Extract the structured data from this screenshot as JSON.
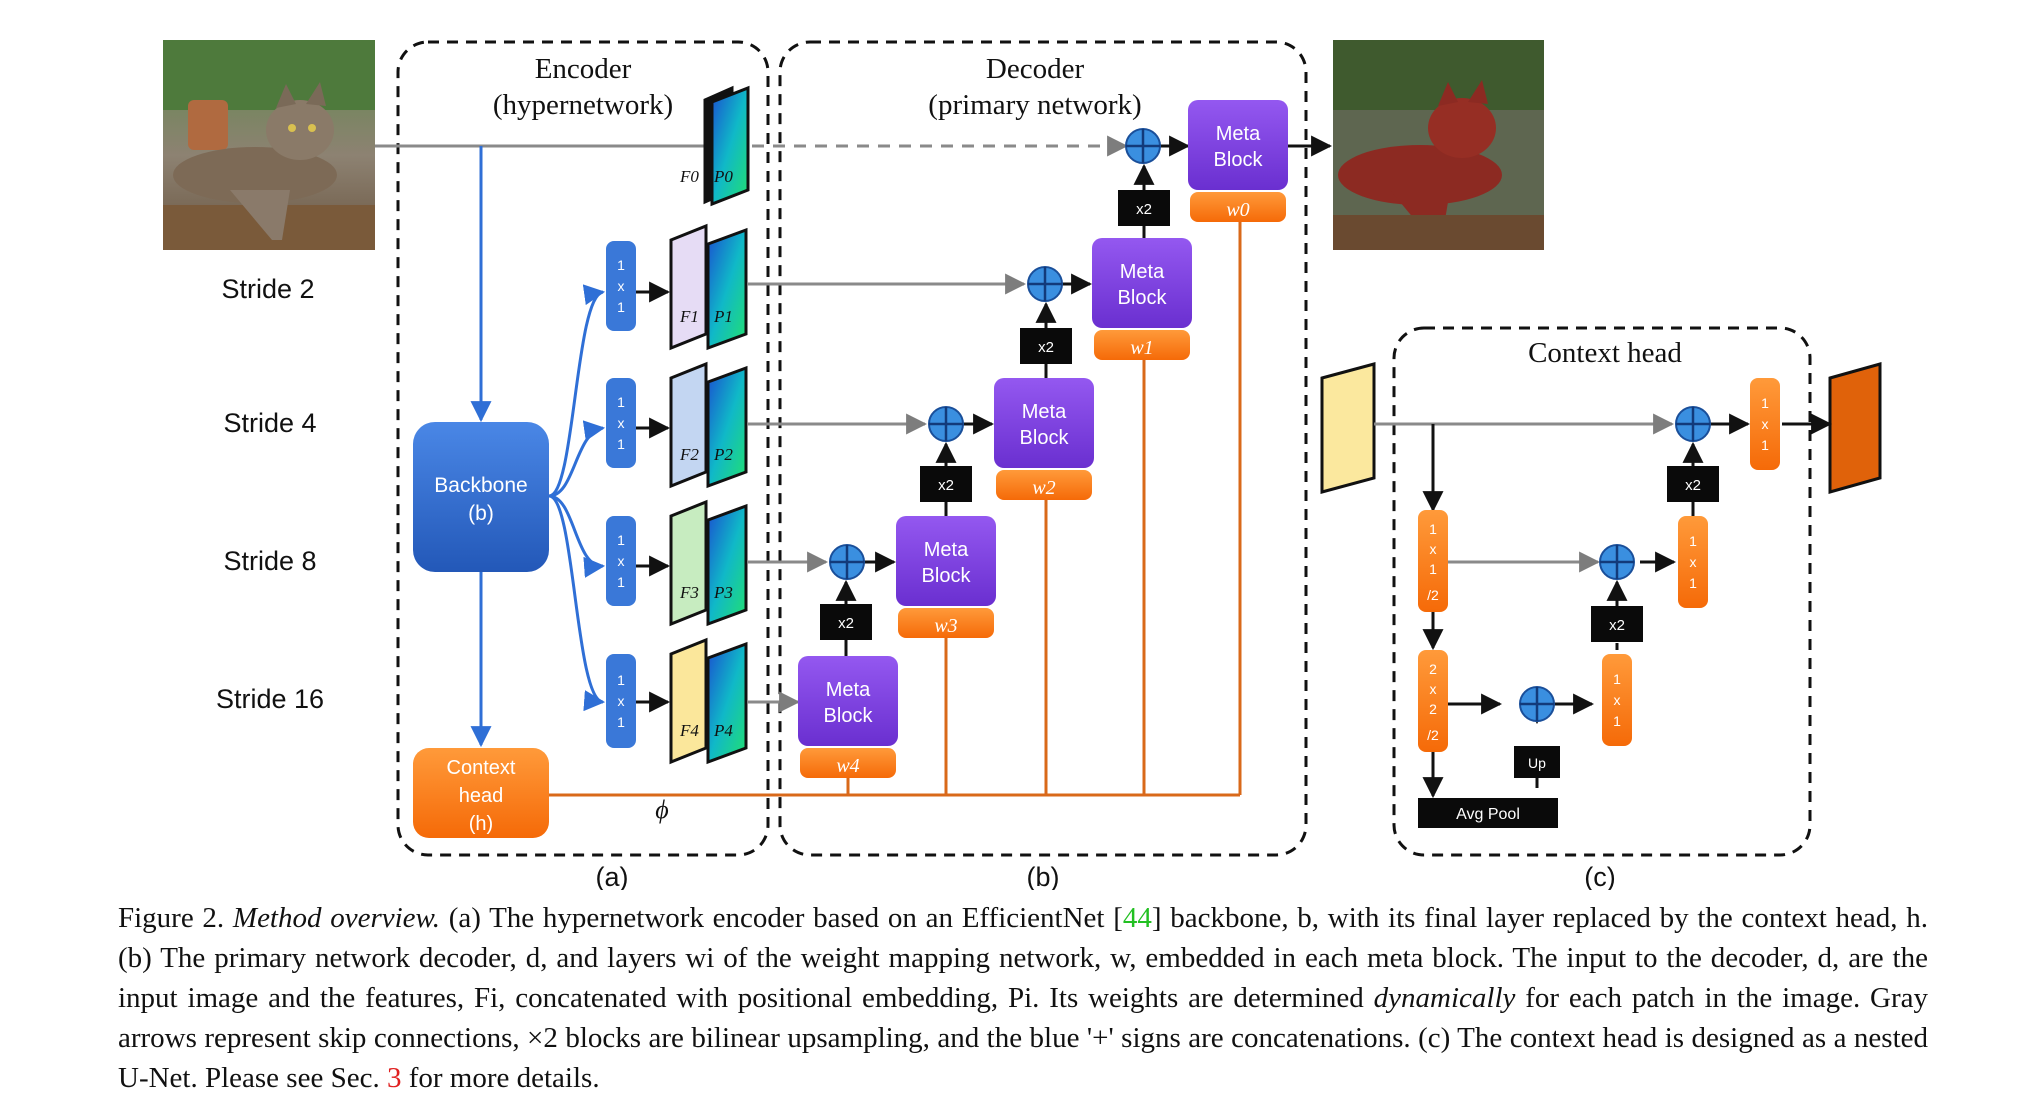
{
  "labels": {
    "encoder_title_1": "Encoder",
    "encoder_title_2": "(hypernetwork)",
    "decoder_title_1": "Decoder",
    "decoder_title_2": "(primary network)",
    "context_head_title": "Context head",
    "stride_2": "Stride 2",
    "stride_4": "Stride 4",
    "stride_8": "Stride 8",
    "stride_16": "Stride 16",
    "backbone_1": "Backbone",
    "backbone_2": "(b)",
    "ctx_1": "Context",
    "ctx_2": "head",
    "ctx_3": "(h)",
    "phi": "ϕ",
    "meta_1": "Meta",
    "meta_2": "Block",
    "x2": "x2",
    "up": "Up",
    "avg_pool": "Avg Pool",
    "conv_1": "1",
    "conv_x": "x",
    "conv_2": "2",
    "conv_div2": "/2",
    "sub_a": "(a)",
    "sub_b": "(b)",
    "sub_c": "(c)",
    "w0": "w0",
    "w1": "w1",
    "w2": "w2",
    "w3": "w3",
    "w4": "w4",
    "F0": "F0",
    "P0": "P0",
    "F1": "F1",
    "P1": "P1",
    "F2": "F2",
    "P2": "P2",
    "F3": "F3",
    "P3": "P3",
    "F4": "F4",
    "P4": "P4"
  },
  "caption": {
    "fig": "Figure 2.",
    "title": "Method overview.",
    "t1": "(a) The hypernetwork encoder based on an EfficientNet [",
    "ref1": "44",
    "t2": "] backbone, b, with its final layer replaced by the context head, h. (b) The primary network decoder, d, and layers wi of the weight mapping network, w, embedded in each meta block. The input to the decoder, d, are the input image and the features, Fi, concatenated with positional embedding, Pi. Its weights are determined",
    "dyn": "dynamically",
    "t3": "for each patch in the image. Gray arrows represent skip connections, ×2 blocks are bilinear upsampling, and the blue '+' signs are concatenations. (c) The context head is designed as a nested U-Net. Please see Sec.",
    "ref2": "3",
    "t4": "for more details."
  },
  "colors": {
    "backbone": "#2e6bd2",
    "conv_blue": "#3a78d8",
    "orange": "#ff7a14",
    "orange_line": "#d96a1a",
    "meta": "#7b3fe0",
    "plus": "#3a8fe0",
    "gray_line": "#8a8a8a",
    "black_box": "#0a0a0a"
  }
}
